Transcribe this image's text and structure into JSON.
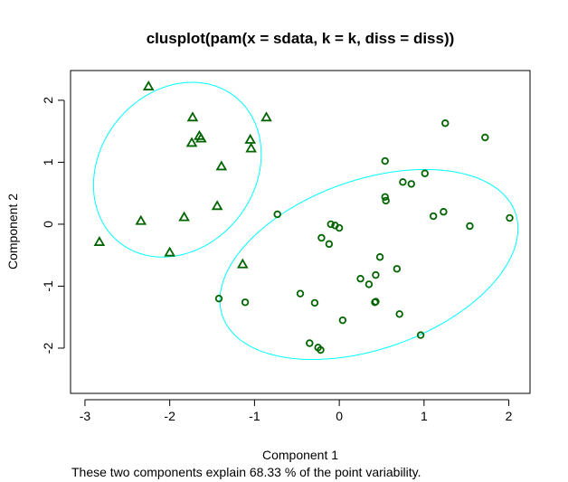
{
  "chart_data": {
    "type": "scatter",
    "title": "clusplot(pam(x = sdata, k = k, diss = diss))",
    "xlabel": "Component 1",
    "ylabel": "Component 2",
    "caption": "These two components explain 68.33 % of the point variability.",
    "xlim": [
      -3.17,
      2.25
    ],
    "ylim": [
      -2.73,
      2.48
    ],
    "xticks": [
      -3,
      -2,
      -1,
      0,
      1,
      2
    ],
    "yticks": [
      -2,
      -1,
      0,
      1,
      2
    ],
    "grid": false,
    "legend": "none",
    "colors": {
      "points": "#006400",
      "ellipse": "#00FFFF",
      "axis": "#000000"
    },
    "series": [
      {
        "marker": "triangle",
        "points": [
          [
            -2.25,
            2.22
          ],
          [
            -1.73,
            1.72
          ],
          [
            -0.86,
            1.72
          ],
          [
            -1.65,
            1.42
          ],
          [
            -1.63,
            1.38
          ],
          [
            -1.05,
            1.36
          ],
          [
            -1.74,
            1.31
          ],
          [
            -1.04,
            1.22
          ],
          [
            -1.39,
            0.93
          ],
          [
            -1.44,
            0.29
          ],
          [
            -2.34,
            0.05
          ],
          [
            -1.83,
            0.11
          ],
          [
            -2.83,
            -0.29
          ],
          [
            -2.0,
            -0.46
          ],
          [
            -1.14,
            -0.65
          ]
        ]
      },
      {
        "marker": "circle",
        "points": [
          [
            1.25,
            1.63
          ],
          [
            1.72,
            1.4
          ],
          [
            0.54,
            1.02
          ],
          [
            1.01,
            0.82
          ],
          [
            0.75,
            0.68
          ],
          [
            0.85,
            0.65
          ],
          [
            0.54,
            0.44
          ],
          [
            0.55,
            0.38
          ],
          [
            -0.73,
            0.16
          ],
          [
            1.11,
            0.13
          ],
          [
            1.23,
            0.2
          ],
          [
            2.01,
            0.1
          ],
          [
            1.54,
            -0.03
          ],
          [
            -0.1,
            0.0
          ],
          [
            -0.05,
            -0.02
          ],
          [
            0.0,
            -0.06
          ],
          [
            -0.21,
            -0.22
          ],
          [
            -0.12,
            -0.32
          ],
          [
            0.48,
            -0.53
          ],
          [
            0.43,
            -0.82
          ],
          [
            0.68,
            -0.72
          ],
          [
            0.25,
            -0.88
          ],
          [
            0.35,
            -0.97
          ],
          [
            -0.46,
            -1.12
          ],
          [
            -1.42,
            -1.2
          ],
          [
            -1.11,
            -1.26
          ],
          [
            -0.29,
            -1.27
          ],
          [
            0.43,
            -1.25
          ],
          [
            0.42,
            -1.26
          ],
          [
            0.71,
            -1.45
          ],
          [
            0.04,
            -1.55
          ],
          [
            0.96,
            -1.79
          ],
          [
            -0.35,
            -1.92
          ],
          [
            -0.25,
            -1.99
          ],
          [
            -0.22,
            -2.03
          ]
        ]
      }
    ],
    "ellipses": [
      {
        "cx": -1.91,
        "cy": 0.88,
        "rx": 0.96,
        "ry": 1.43,
        "angle_deg": -13
      },
      {
        "cx": 0.35,
        "cy": -0.65,
        "rx": 1.95,
        "ry": 1.28,
        "angle_deg": 35
      }
    ]
  }
}
